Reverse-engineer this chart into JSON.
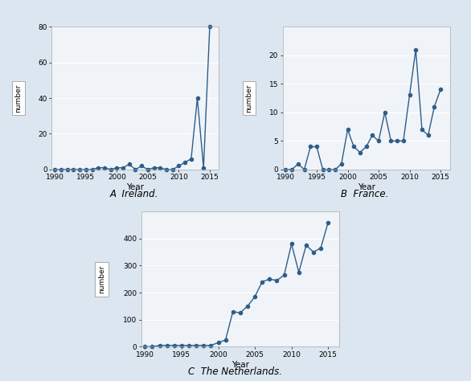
{
  "ireland": {
    "years": [
      1990,
      1991,
      1992,
      1993,
      1994,
      1995,
      1996,
      1997,
      1998,
      1999,
      2000,
      2001,
      2002,
      2003,
      2004,
      2005,
      2006,
      2007,
      2008,
      2009,
      2010,
      2011,
      2012,
      2013,
      2014,
      2015
    ],
    "values": [
      0,
      0,
      0,
      0,
      0,
      0,
      0,
      1,
      1,
      0,
      1,
      1,
      3,
      0,
      2,
      0,
      1,
      1,
      0,
      0,
      2,
      4,
      6,
      40,
      1,
      80
    ],
    "xlim": [
      1989.5,
      2016.5
    ],
    "ylim": [
      0,
      80
    ],
    "yticks": [
      0,
      20,
      40,
      60,
      80
    ],
    "ylabel": "number",
    "xlabel": "Year",
    "label": "A  Ireland."
  },
  "france": {
    "years": [
      1990,
      1991,
      1992,
      1993,
      1994,
      1995,
      1996,
      1997,
      1998,
      1999,
      2000,
      2001,
      2002,
      2003,
      2004,
      2005,
      2006,
      2007,
      2008,
      2009,
      2010,
      2011,
      2012,
      2013,
      2014,
      2015
    ],
    "values": [
      0,
      0,
      1,
      0,
      4,
      4,
      0,
      0,
      0,
      1,
      7,
      4,
      3,
      4,
      6,
      5,
      10,
      5,
      5,
      5,
      13,
      21,
      7,
      6,
      11,
      14
    ],
    "xlim": [
      1989.5,
      2016.5
    ],
    "ylim": [
      0,
      25
    ],
    "yticks": [
      0,
      5,
      10,
      15,
      20
    ],
    "ylabel": "number",
    "xlabel": "Year",
    "label": "B  France."
  },
  "netherlands": {
    "years": [
      1990,
      1991,
      1992,
      1993,
      1994,
      1995,
      1996,
      1997,
      1998,
      1999,
      2000,
      2001,
      2002,
      2003,
      2004,
      2005,
      2006,
      2007,
      2008,
      2009,
      2010,
      2011,
      2012,
      2013,
      2014,
      2015
    ],
    "values": [
      0,
      0,
      5,
      5,
      5,
      5,
      5,
      5,
      5,
      5,
      15,
      25,
      130,
      125,
      150,
      185,
      240,
      250,
      245,
      265,
      380,
      275,
      375,
      350,
      365,
      460
    ],
    "xlim": [
      1989.5,
      2016.5
    ],
    "ylim": [
      0,
      500
    ],
    "yticks": [
      0,
      100,
      200,
      300,
      400
    ],
    "ylabel": "number",
    "xlabel": "Year",
    "label": "C  The Netherlands."
  },
  "line_color": "#2E5D8A",
  "markersize": 3.0,
  "linewidth": 1.0,
  "bg_color": "#dce6f0",
  "plot_bg_color": "#f0f4f8",
  "xticks": [
    1990,
    1995,
    2000,
    2005,
    2010,
    2015
  ],
  "tick_fontsize": 6.5,
  "label_fontsize": 7.5,
  "ylabel_fontsize": 6.5,
  "panel_label_fontsize": 8.5
}
